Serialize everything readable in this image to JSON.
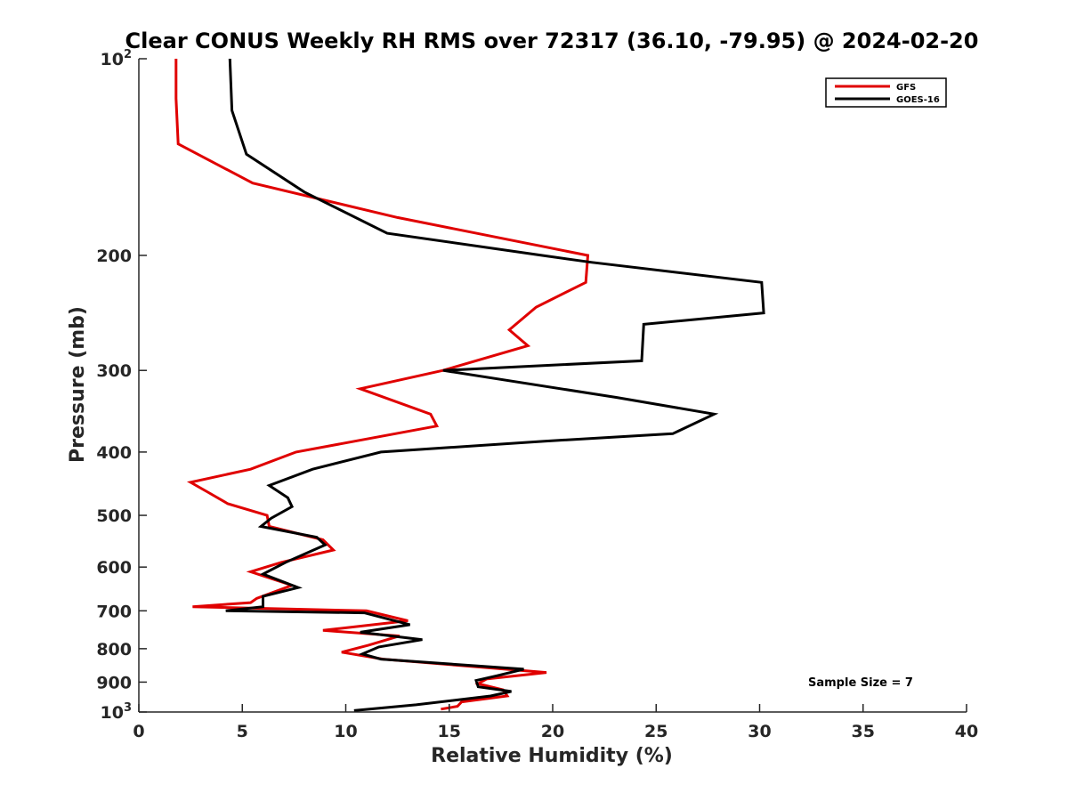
{
  "chart_data": {
    "type": "line",
    "title": "Clear CONUS Weekly RH RMS over 72317 (36.10, -79.95) @ 2024-02-20",
    "xlabel": "Relative Humidity (%)",
    "ylabel": "Pressure (mb)",
    "xlim": [
      0,
      40
    ],
    "ylim": [
      100,
      1000
    ],
    "y_scale": "log",
    "y_reversed": true,
    "x_ticks": [
      "0",
      "5",
      "10",
      "15",
      "20",
      "25",
      "30",
      "35",
      "40"
    ],
    "y_ticks": [
      {
        "value": 100,
        "base": "10",
        "exp": "2"
      },
      {
        "value": 200,
        "label": "200"
      },
      {
        "value": 300,
        "label": "300"
      },
      {
        "value": 400,
        "label": "400"
      },
      {
        "value": 500,
        "label": "500"
      },
      {
        "value": 600,
        "label": "600"
      },
      {
        "value": 700,
        "label": "700"
      },
      {
        "value": 800,
        "label": "800"
      },
      {
        "value": 900,
        "label": "900"
      },
      {
        "value": 1000,
        "base": "10",
        "exp": "3"
      }
    ],
    "grid": false,
    "legend_position": "top-right",
    "annotation": "Sample Size = 7",
    "series": [
      {
        "name": "GFS",
        "color": "#e00000",
        "points": [
          [
            1.8,
            100
          ],
          [
            1.8,
            115
          ],
          [
            1.9,
            135
          ],
          [
            5.5,
            155
          ],
          [
            12.5,
            175
          ],
          [
            21.7,
            200
          ],
          [
            21.6,
            220
          ],
          [
            19.2,
            240
          ],
          [
            17.9,
            260
          ],
          [
            18.8,
            275
          ],
          [
            14.7,
            300
          ],
          [
            10.7,
            320
          ],
          [
            14.1,
            350
          ],
          [
            14.4,
            365
          ],
          [
            7.6,
            400
          ],
          [
            5.4,
            425
          ],
          [
            2.5,
            445
          ],
          [
            3.3,
            460
          ],
          [
            4.3,
            480
          ],
          [
            6.2,
            500
          ],
          [
            6.3,
            520
          ],
          [
            8.9,
            545
          ],
          [
            9.4,
            565
          ],
          [
            6.9,
            590
          ],
          [
            5.4,
            610
          ],
          [
            7.4,
            640
          ],
          [
            5.7,
            670
          ],
          [
            5.4,
            680
          ],
          [
            2.6,
            690
          ],
          [
            11.0,
            700
          ],
          [
            13.0,
            725
          ],
          [
            8.9,
            750
          ],
          [
            12.6,
            765
          ],
          [
            11.1,
            790
          ],
          [
            9.8,
            810
          ],
          [
            11.8,
            830
          ],
          [
            19.7,
            870
          ],
          [
            16.8,
            890
          ],
          [
            16.4,
            905
          ],
          [
            17.6,
            925
          ],
          [
            17.8,
            945
          ],
          [
            15.6,
            965
          ],
          [
            15.4,
            980
          ],
          [
            14.6,
            990
          ]
        ]
      },
      {
        "name": "GOES-16",
        "color": "#000000",
        "points": [
          [
            4.4,
            100
          ],
          [
            4.5,
            120
          ],
          [
            5.2,
            140
          ],
          [
            8.0,
            160
          ],
          [
            12.0,
            185
          ],
          [
            19.5,
            200
          ],
          [
            21.9,
            205
          ],
          [
            30.1,
            220
          ],
          [
            30.2,
            245
          ],
          [
            24.4,
            255
          ],
          [
            24.3,
            290
          ],
          [
            14.7,
            300
          ],
          [
            23.1,
            330
          ],
          [
            27.8,
            350
          ],
          [
            25.8,
            375
          ],
          [
            19.6,
            385
          ],
          [
            11.7,
            400
          ],
          [
            8.4,
            425
          ],
          [
            6.3,
            450
          ],
          [
            7.2,
            470
          ],
          [
            7.4,
            485
          ],
          [
            6.4,
            505
          ],
          [
            5.9,
            520
          ],
          [
            8.6,
            540
          ],
          [
            9.0,
            555
          ],
          [
            7.1,
            590
          ],
          [
            6.0,
            615
          ],
          [
            7.7,
            645
          ],
          [
            6.0,
            665
          ],
          [
            6.0,
            690
          ],
          [
            4.2,
            700
          ],
          [
            10.9,
            705
          ],
          [
            13.1,
            735
          ],
          [
            10.7,
            755
          ],
          [
            13.7,
            775
          ],
          [
            11.6,
            795
          ],
          [
            10.8,
            815
          ],
          [
            11.7,
            830
          ],
          [
            18.6,
            860
          ],
          [
            17.3,
            880
          ],
          [
            16.3,
            895
          ],
          [
            16.4,
            915
          ],
          [
            18.0,
            930
          ],
          [
            17.0,
            945
          ],
          [
            13.4,
            975
          ],
          [
            10.4,
            995
          ]
        ]
      }
    ]
  }
}
